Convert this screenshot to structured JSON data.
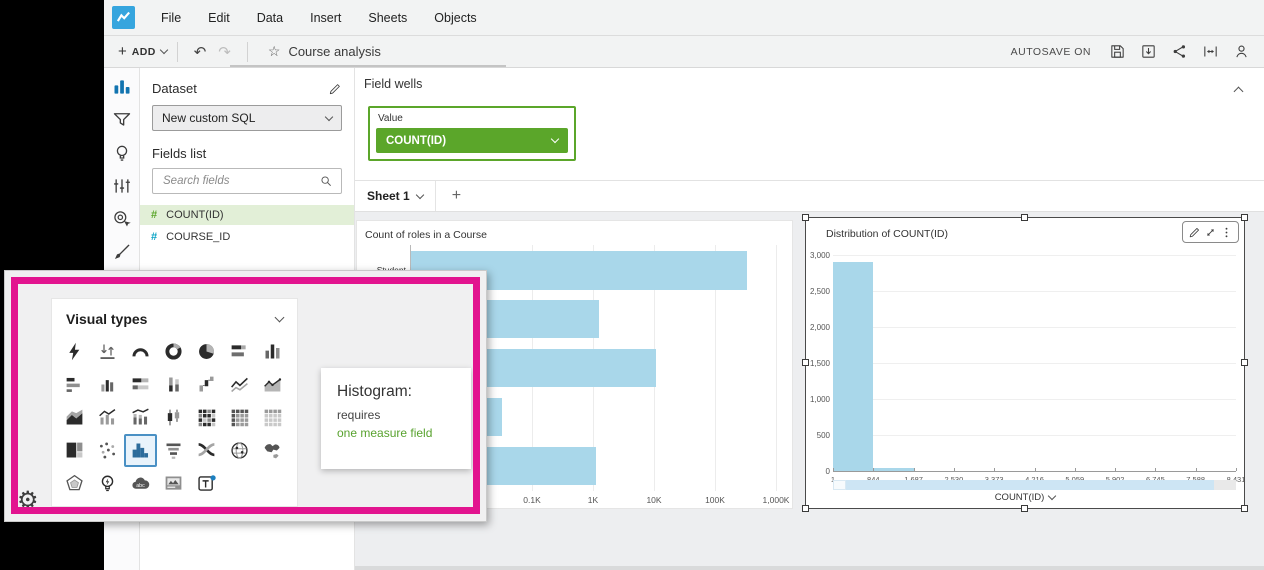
{
  "menubar": {
    "menus": [
      "File",
      "Edit",
      "Data",
      "Insert",
      "Sheets",
      "Objects"
    ]
  },
  "toolbar": {
    "add_label": "ADD",
    "undo_icon": "undo-arrow-icon",
    "redo_icon": "redo-arrow-icon",
    "favorite_icon": "star-icon",
    "analysis_title": "Course analysis",
    "autosave_label": "AUTOSAVE ON",
    "right_icons": [
      "save-icon",
      "export-icon",
      "share-icon",
      "fit-width-icon",
      "user-icon"
    ]
  },
  "rail": {
    "items": [
      {
        "name": "visualize",
        "icon": "bar-chart-icon",
        "selected": true
      },
      {
        "name": "filter",
        "icon": "filter-icon",
        "selected": false
      },
      {
        "name": "insights",
        "icon": "bulb-icon",
        "selected": false
      },
      {
        "name": "parameters",
        "icon": "sliders-icon",
        "selected": false
      },
      {
        "name": "actions",
        "icon": "action-click-icon",
        "selected": false
      },
      {
        "name": "themes",
        "icon": "brush-icon",
        "selected": false
      }
    ]
  },
  "dataset_panel": {
    "title": "Dataset",
    "edit_icon": "pencil-icon",
    "dataset_value": "New custom SQL",
    "fields_list_label": "Fields list",
    "search_placeholder": "Search fields",
    "fields": [
      {
        "label": "COUNT(ID)",
        "type_color": "#5ba62a",
        "selected": true
      },
      {
        "label": "COURSE_ID",
        "type_color": "#09a3c5",
        "selected": false
      }
    ]
  },
  "field_wells": {
    "title": "Field wells",
    "well_label": "Value",
    "well_value": "COUNT(ID)",
    "pill_color": "#5ba62a"
  },
  "sheet_bar": {
    "active_tab": "Sheet 1",
    "add_sheet_label": "+"
  },
  "chart_data": [
    {
      "type": "bar",
      "orientation": "horizontal",
      "title": "Count of roles in a Course",
      "categories": [
        "Student",
        "",
        "",
        "",
        ""
      ],
      "values": [
        320000,
        1200,
        10500,
        31,
        1080
      ],
      "bar_color": "#a9d7ea",
      "x_scale": "log",
      "x_ticks": [
        {
          "label": "0.1K",
          "value": 100
        },
        {
          "label": "1K",
          "value": 1000
        },
        {
          "label": "10K",
          "value": 10000
        },
        {
          "label": "100K",
          "value": 100000
        },
        {
          "label": "1,000K",
          "value": 1000000
        }
      ],
      "xlim": [
        1,
        2300000
      ],
      "note": "category labels below Student are hidden behind the Visual types popup"
    },
    {
      "type": "histogram",
      "title": "Distribution of COUNT(ID)",
      "xlabel": "COUNT(ID)",
      "bar_color": "#a9d7ea",
      "ylim": [
        0,
        3000
      ],
      "y_ticks": [
        "0",
        "500",
        "1,000",
        "1,500",
        "2,000",
        "2,500",
        "3,000"
      ],
      "x_ticks": [
        "1",
        "844",
        "1,687",
        "2,530",
        "3,373",
        "4,216",
        "5,059",
        "5,902",
        "6,745",
        "7,588",
        "8,431"
      ],
      "bins": [
        {
          "x0": 1,
          "x1": 844,
          "count": 2900
        },
        {
          "x0": 844,
          "x1": 1687,
          "count": 40
        }
      ],
      "selected": true,
      "toolbar_icons": [
        "pencil-icon",
        "expand-icon",
        "kebab-icon"
      ]
    }
  ],
  "visual_types_popup": {
    "title": "Visual types",
    "selected": "histogram",
    "settings_icon": "gear-icon",
    "types": [
      {
        "name": "auto-graph"
      },
      {
        "name": "kpi"
      },
      {
        "name": "gauge"
      },
      {
        "name": "donut-chart"
      },
      {
        "name": "pie-chart"
      },
      {
        "name": "horizontal-stacked-bar"
      },
      {
        "name": "vertical-bar-chart"
      },
      {
        "name": "horizontal-bar-chart"
      },
      {
        "name": "vertical-grouped-bar"
      },
      {
        "name": "horizontal-stacked-100"
      },
      {
        "name": "vertical-stacked-bar"
      },
      {
        "name": "waterfall"
      },
      {
        "name": "line-chart"
      },
      {
        "name": "area-line-chart"
      },
      {
        "name": "stacked-area"
      },
      {
        "name": "combo-bar-line"
      },
      {
        "name": "combo-stacked-bar-line"
      },
      {
        "name": "box-plot"
      },
      {
        "name": "heat-map"
      },
      {
        "name": "pivot-table"
      },
      {
        "name": "table"
      },
      {
        "name": "tree-map"
      },
      {
        "name": "scatter-plot"
      },
      {
        "name": "histogram"
      },
      {
        "name": "funnel"
      },
      {
        "name": "sankey"
      },
      {
        "name": "points-on-map"
      },
      {
        "name": "filled-map"
      },
      {
        "name": "radar-chart"
      },
      {
        "name": "insights"
      },
      {
        "name": "word-cloud"
      },
      {
        "name": "custom-visual"
      },
      {
        "name": "text-box"
      }
    ]
  },
  "tooltip": {
    "title": "Histogram:",
    "line1": "requires",
    "line2": "one measure field",
    "accent_color": "#58a22e"
  }
}
